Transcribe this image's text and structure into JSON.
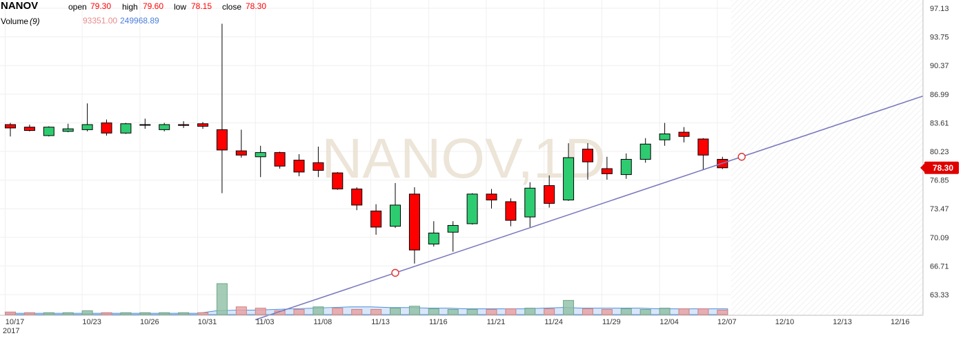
{
  "legend": {
    "symbol": "NANOV",
    "open_label": "open",
    "open_value": "79.30",
    "high_label": "high",
    "high_value": "79.60",
    "low_label": "low",
    "low_value": "78.15",
    "close_label": "close",
    "close_value": "78.30",
    "volume_label": "Volume",
    "volume_period": "(9)",
    "volume_value": "93351.00",
    "volume_ma_value": "249968.89"
  },
  "watermark": "NANOV,1D",
  "last_price_tag": "78.30",
  "colors": {
    "up": "#2ecc71",
    "down": "#ff0000",
    "trendline": "#7b7bbf",
    "volume_up": "#8fbfa4",
    "volume_down": "#e8a0a0",
    "volume_ma": "#4a90d9",
    "price_tag": "#e00000"
  },
  "chart_data": {
    "type": "candlestick",
    "y_axis": {
      "ticks": [
        "97.13",
        "93.75",
        "90.37",
        "86.99",
        "83.61",
        "80.23",
        "76.85",
        "73.47",
        "70.09",
        "66.71",
        "63.33"
      ],
      "range": [
        61.8,
        98.5
      ],
      "side": "right"
    },
    "x_axis": {
      "ticks": [
        {
          "label": "10/17",
          "year": "2017",
          "date": "2017-10-17"
        },
        {
          "label": "10/23",
          "date": "2017-10-23"
        },
        {
          "label": "10/26",
          "date": "2017-10-26"
        },
        {
          "label": "10/31",
          "date": "2017-10-31"
        },
        {
          "label": "11/03",
          "date": "2017-11-03"
        },
        {
          "label": "11/08",
          "date": "2017-11-08"
        },
        {
          "label": "11/13",
          "date": "2017-11-13"
        },
        {
          "label": "11/16",
          "date": "2017-11-16"
        },
        {
          "label": "11/21",
          "date": "2017-11-21"
        },
        {
          "label": "11/24",
          "date": "2017-11-24"
        },
        {
          "label": "11/29",
          "date": "2017-11-29"
        },
        {
          "label": "12/04",
          "date": "2017-12-04"
        },
        {
          "label": "12/07",
          "date": "2017-12-07"
        },
        {
          "label": "12/10",
          "date": "2017-12-10"
        },
        {
          "label": "12/13",
          "date": "2017-12-13"
        },
        {
          "label": "12/16",
          "date": "2017-12-16"
        }
      ]
    },
    "candles": [
      {
        "date": "2017-10-17",
        "open": 83.4,
        "high": 83.6,
        "low": 82.0,
        "close": 83.0
      },
      {
        "date": "2017-10-18",
        "open": 83.1,
        "high": 83.4,
        "low": 82.6,
        "close": 82.7
      },
      {
        "date": "2017-10-19",
        "open": 82.1,
        "high": 83.2,
        "low": 82.0,
        "close": 83.1
      },
      {
        "date": "2017-10-20",
        "open": 82.6,
        "high": 83.5,
        "low": 82.5,
        "close": 82.9
      },
      {
        "date": "2017-10-23",
        "open": 82.8,
        "high": 85.9,
        "low": 82.6,
        "close": 83.4
      },
      {
        "date": "2017-10-24",
        "open": 83.6,
        "high": 84.0,
        "low": 82.1,
        "close": 82.4
      },
      {
        "date": "2017-10-25",
        "open": 82.4,
        "high": 83.6,
        "low": 82.3,
        "close": 83.5
      },
      {
        "date": "2017-10-26",
        "open": 83.4,
        "high": 84.1,
        "low": 82.9,
        "close": 83.4
      },
      {
        "date": "2017-10-27",
        "open": 82.8,
        "high": 83.6,
        "low": 82.6,
        "close": 83.4
      },
      {
        "date": "2017-10-30",
        "open": 83.4,
        "high": 83.8,
        "low": 83.0,
        "close": 83.3
      },
      {
        "date": "2017-10-31",
        "open": 83.5,
        "high": 83.7,
        "low": 82.9,
        "close": 83.2
      },
      {
        "date": "2017-11-01",
        "open": 82.8,
        "high": 95.3,
        "low": 75.3,
        "close": 80.4
      },
      {
        "date": "2017-11-02",
        "open": 80.3,
        "high": 82.8,
        "low": 79.5,
        "close": 79.8
      },
      {
        "date": "2017-11-03",
        "open": 79.6,
        "high": 80.9,
        "low": 77.2,
        "close": 80.1
      },
      {
        "date": "2017-11-06",
        "open": 80.1,
        "high": 80.2,
        "low": 78.2,
        "close": 78.5
      },
      {
        "date": "2017-11-07",
        "open": 79.2,
        "high": 79.9,
        "low": 77.3,
        "close": 77.8
      },
      {
        "date": "2017-11-08",
        "open": 78.9,
        "high": 80.8,
        "low": 77.2,
        "close": 78.0
      },
      {
        "date": "2017-11-09",
        "open": 77.7,
        "high": 77.8,
        "low": 75.7,
        "close": 75.8
      },
      {
        "date": "2017-11-10",
        "open": 75.8,
        "high": 76.0,
        "low": 73.3,
        "close": 73.9
      },
      {
        "date": "2017-11-13",
        "open": 73.2,
        "high": 74.0,
        "low": 70.4,
        "close": 71.3
      },
      {
        "date": "2017-11-14",
        "open": 71.4,
        "high": 76.5,
        "low": 71.2,
        "close": 73.9
      },
      {
        "date": "2017-11-15",
        "open": 75.2,
        "high": 76.0,
        "low": 67.0,
        "close": 68.6
      },
      {
        "date": "2017-11-16",
        "open": 69.3,
        "high": 72.0,
        "low": 69.0,
        "close": 70.6
      },
      {
        "date": "2017-11-17",
        "open": 70.7,
        "high": 72.0,
        "low": 68.4,
        "close": 71.5
      },
      {
        "date": "2017-11-20",
        "open": 71.7,
        "high": 75.3,
        "low": 71.6,
        "close": 75.2
      },
      {
        "date": "2017-11-21",
        "open": 75.2,
        "high": 75.8,
        "low": 73.5,
        "close": 74.5
      },
      {
        "date": "2017-11-22",
        "open": 74.3,
        "high": 74.7,
        "low": 71.4,
        "close": 72.1
      },
      {
        "date": "2017-11-23",
        "open": 72.5,
        "high": 76.6,
        "low": 71.3,
        "close": 75.9
      },
      {
        "date": "2017-11-24",
        "open": 76.2,
        "high": 77.4,
        "low": 73.6,
        "close": 74.1
      },
      {
        "date": "2017-11-27",
        "open": 74.5,
        "high": 81.2,
        "low": 74.4,
        "close": 79.5
      },
      {
        "date": "2017-11-28",
        "open": 80.5,
        "high": 81.2,
        "low": 76.9,
        "close": 79.0
      },
      {
        "date": "2017-11-29",
        "open": 78.2,
        "high": 79.6,
        "low": 76.9,
        "close": 77.6
      },
      {
        "date": "2017-11-30",
        "open": 77.5,
        "high": 80.0,
        "low": 77.0,
        "close": 79.3
      },
      {
        "date": "2017-12-01",
        "open": 79.3,
        "high": 81.8,
        "low": 78.9,
        "close": 81.1
      },
      {
        "date": "2017-12-04",
        "open": 81.6,
        "high": 83.6,
        "low": 80.9,
        "close": 82.3
      },
      {
        "date": "2017-12-05",
        "open": 82.5,
        "high": 83.1,
        "low": 81.3,
        "close": 82.0
      },
      {
        "date": "2017-12-06",
        "open": 81.7,
        "high": 81.8,
        "low": 78.1,
        "close": 79.8
      },
      {
        "date": "2017-12-07",
        "open": 79.3,
        "high": 79.6,
        "low": 78.15,
        "close": 78.3
      }
    ],
    "volume": [
      4,
      3,
      3,
      3,
      6,
      3,
      3,
      3,
      3,
      3,
      3,
      48,
      12,
      10,
      6,
      8,
      12,
      10,
      8,
      8,
      10,
      13,
      9,
      8,
      8,
      8,
      9,
      10,
      9,
      22,
      9,
      8,
      9,
      8,
      10,
      9,
      9,
      7
    ],
    "volume_direction": [
      "down",
      "down",
      "up",
      "up",
      "up",
      "down",
      "up",
      "up",
      "up",
      "up",
      "down",
      "up",
      "down",
      "down",
      "down",
      "down",
      "up",
      "down",
      "down",
      "down",
      "up",
      "up",
      "up",
      "up",
      "up",
      "down",
      "down",
      "up",
      "down",
      "up",
      "down",
      "down",
      "up",
      "up",
      "up",
      "down",
      "down",
      "down"
    ],
    "volume_ma": [
      2,
      2,
      2,
      2,
      2,
      2,
      2,
      2,
      2,
      2,
      2,
      6,
      7,
      7,
      8,
      9,
      10,
      11,
      12,
      12,
      11,
      11,
      10,
      10,
      9,
      9,
      9,
      9,
      10,
      11,
      10,
      10,
      10,
      10,
      9,
      9,
      9,
      9
    ],
    "trendline": {
      "points": [
        {
          "date": "2017-11-14",
          "price": 65.9
        },
        {
          "date": "2017-12-08",
          "price": 79.6
        }
      ],
      "extends_right": true
    },
    "last_price": 78.3
  }
}
